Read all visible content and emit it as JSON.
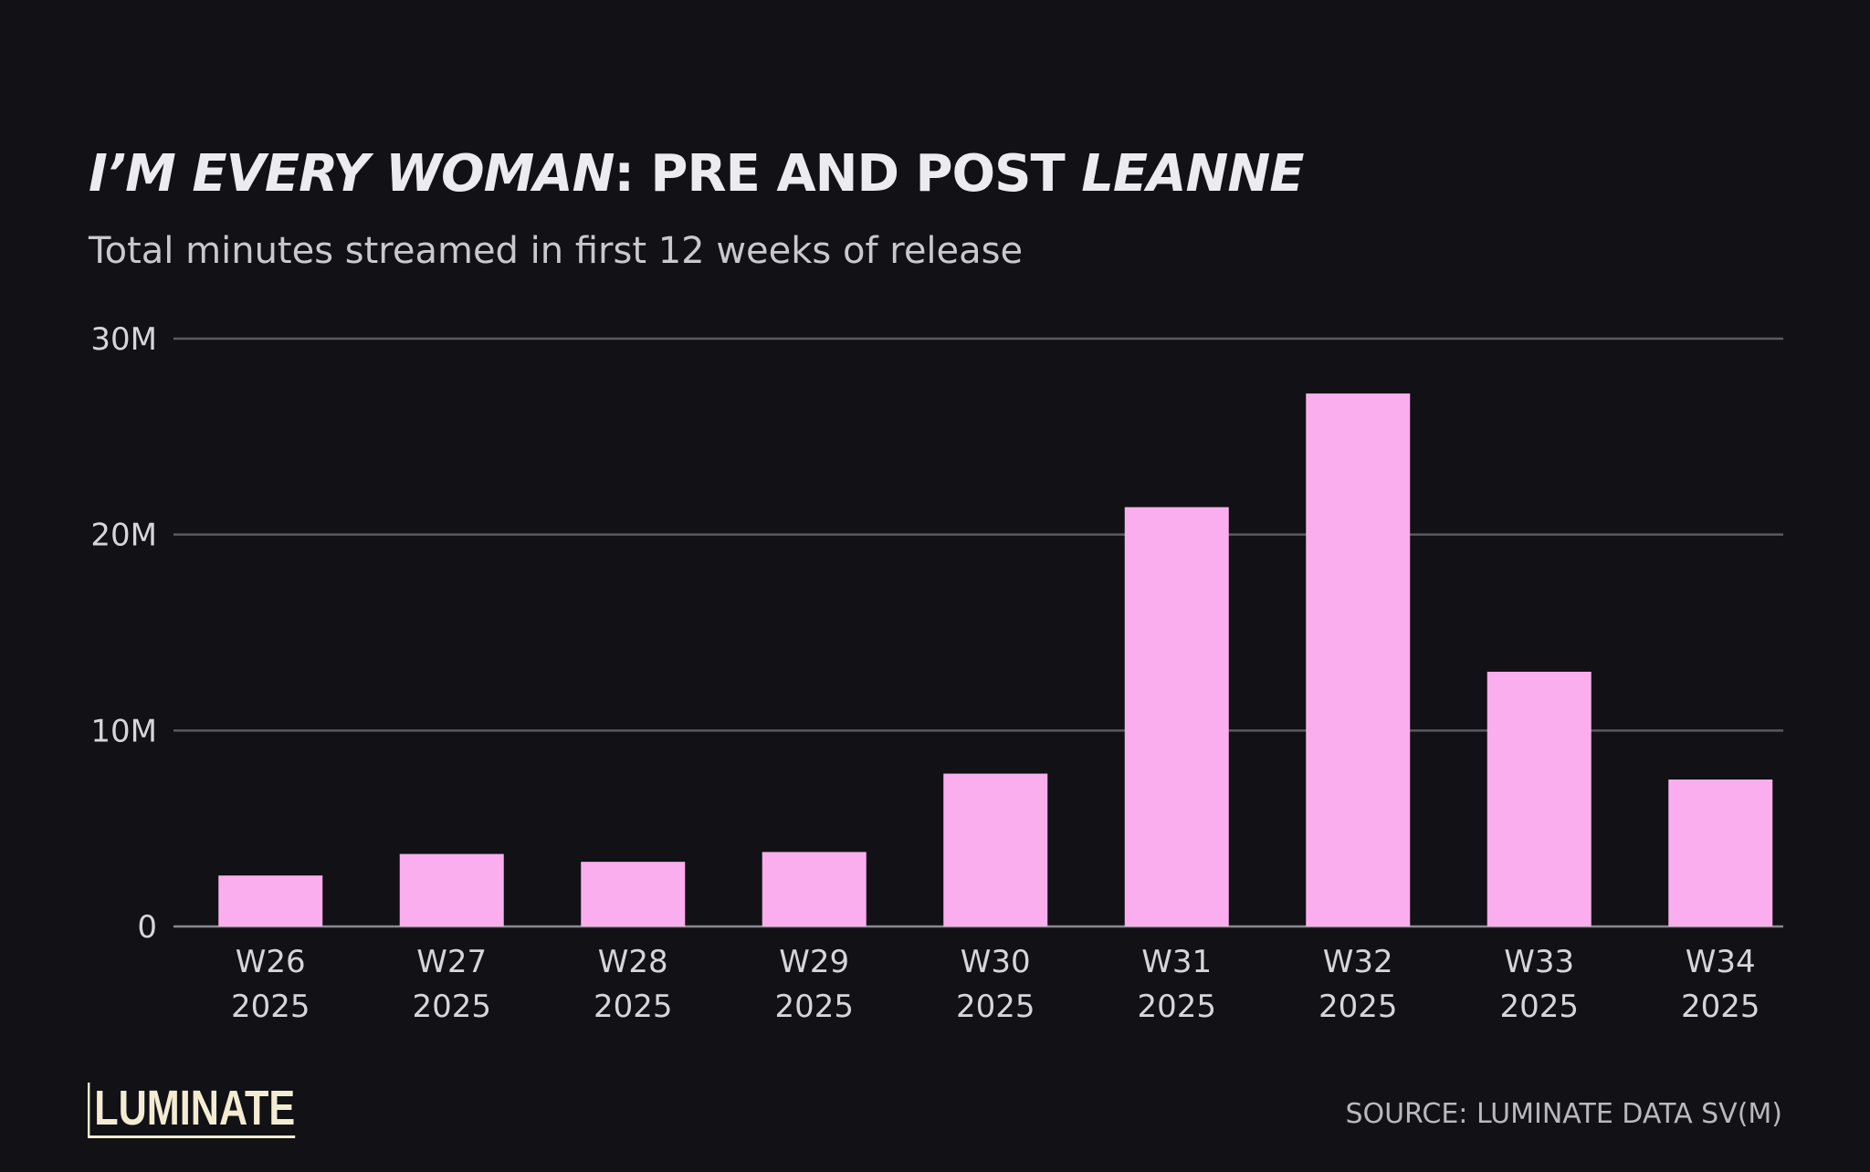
{
  "header": {
    "title_italic_1": "I’M EVERY WOMAN",
    "title_mid": ": PRE AND POST ",
    "title_italic_2": "LEANNE",
    "subtitle": "Total minutes streamed in first 12 weeks of release"
  },
  "footer": {
    "logo": "LUMINATE",
    "source": "SOURCE: LUMINATE DATA SV(M)"
  },
  "colors": {
    "background": "#111116",
    "bar": "#fbaeee",
    "gridline": "#5a5a60",
    "axis_text": "#d6d6da"
  },
  "chart_data": {
    "type": "bar",
    "title": "I’M EVERY WOMAN: PRE AND POST LEANNE",
    "subtitle": "Total minutes streamed in first 12 weeks of release",
    "categories": [
      [
        "W26",
        "2025"
      ],
      [
        "W27",
        "2025"
      ],
      [
        "W28",
        "2025"
      ],
      [
        "W29",
        "2025"
      ],
      [
        "W30",
        "2025"
      ],
      [
        "W31",
        "2025"
      ],
      [
        "W32",
        "2025"
      ],
      [
        "W33",
        "2025"
      ],
      [
        "W34",
        "2025"
      ]
    ],
    "values": [
      2.6,
      3.7,
      3.3,
      3.8,
      7.8,
      21.4,
      27.2,
      13.0,
      7.5
    ],
    "value_unit": "M minutes",
    "ylim": [
      0,
      30
    ],
    "yticks": [
      {
        "value": 0,
        "label": "0"
      },
      {
        "value": 10,
        "label": "10M"
      },
      {
        "value": 20,
        "label": "20M"
      },
      {
        "value": 30,
        "label": "30M"
      }
    ],
    "grid": true,
    "legend": "none"
  }
}
